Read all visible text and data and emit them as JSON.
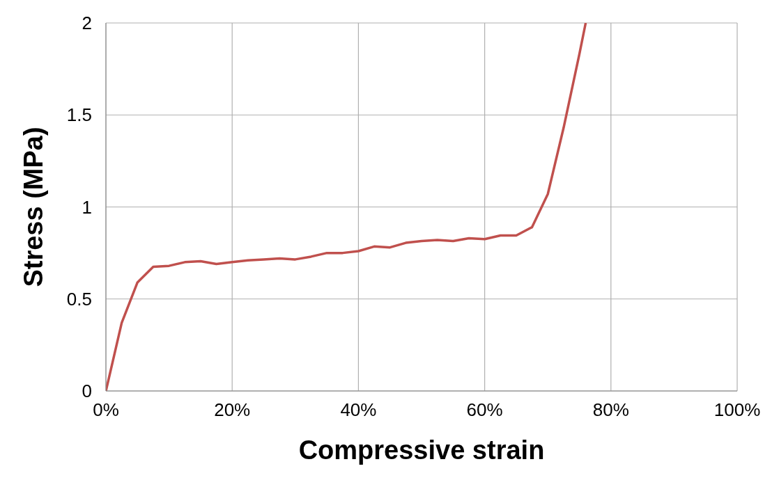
{
  "chart_data": {
    "type": "line",
    "xlabel": "Compressive strain",
    "ylabel": "Stress (MPa)",
    "x": [
      0,
      2.5,
      5,
      7.5,
      10,
      12.5,
      15,
      17.5,
      20,
      22.5,
      25,
      27.5,
      30,
      32.5,
      35,
      37.5,
      40,
      42.5,
      45,
      47.5,
      50,
      52.5,
      55,
      57.5,
      60,
      62.5,
      65,
      67.5,
      70,
      72.5,
      75,
      76
    ],
    "series": [
      {
        "color": "#c0504d",
        "values": [
          0,
          0.37,
          0.59,
          0.675,
          0.68,
          0.7,
          0.705,
          0.69,
          0.7,
          0.71,
          0.715,
          0.72,
          0.715,
          0.73,
          0.75,
          0.75,
          0.76,
          0.785,
          0.78,
          0.805,
          0.815,
          0.82,
          0.815,
          0.83,
          0.825,
          0.845,
          0.845,
          0.89,
          1.07,
          1.43,
          1.83,
          2
        ]
      }
    ],
    "xlim": [
      0,
      100
    ],
    "xticks": [
      {
        "value": 0,
        "label": "0%"
      },
      {
        "value": 20,
        "label": "20%"
      },
      {
        "value": 40,
        "label": "40%"
      },
      {
        "value": 60,
        "label": "60%"
      },
      {
        "value": 80,
        "label": "80%"
      },
      {
        "value": 100,
        "label": "100%"
      }
    ],
    "ylim": [
      0,
      2
    ],
    "yticks": [
      0,
      0.5,
      1,
      1.5,
      2
    ],
    "grid": true
  }
}
